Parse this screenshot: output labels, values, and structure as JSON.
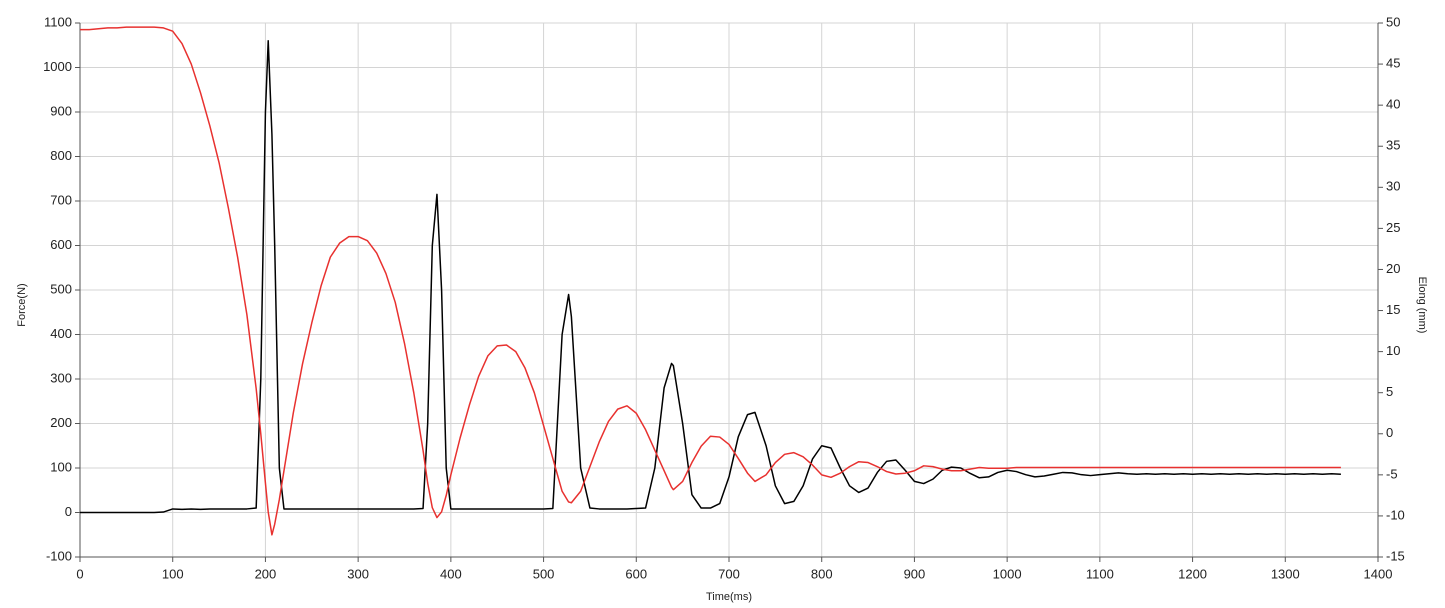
{
  "chart_data": {
    "type": "line",
    "x_label": "Time(ms)",
    "y_label": "Force(N)",
    "y2_label": "Elong (mm)",
    "x": [
      0,
      10,
      20,
      30,
      40,
      50,
      60,
      70,
      80,
      90,
      100,
      110,
      120,
      130,
      140,
      150,
      160,
      170,
      180,
      190,
      195,
      200,
      203,
      207,
      210,
      215,
      220,
      230,
      240,
      250,
      260,
      270,
      280,
      290,
      300,
      310,
      320,
      330,
      340,
      350,
      360,
      370,
      375,
      380,
      385,
      390,
      395,
      400,
      410,
      420,
      430,
      440,
      450,
      460,
      470,
      480,
      490,
      500,
      510,
      520,
      527,
      530,
      540,
      550,
      560,
      570,
      580,
      590,
      600,
      610,
      620,
      630,
      638,
      640,
      650,
      660,
      670,
      680,
      690,
      700,
      710,
      720,
      728,
      740,
      750,
      760,
      770,
      780,
      790,
      800,
      810,
      820,
      830,
      840,
      850,
      860,
      870,
      880,
      890,
      900,
      910,
      920,
      930,
      940,
      950,
      960,
      970,
      980,
      990,
      1000,
      1010,
      1020,
      1030,
      1040,
      1050,
      1060,
      1070,
      1080,
      1090,
      1100,
      1110,
      1120,
      1130,
      1140,
      1150,
      1160,
      1170,
      1180,
      1190,
      1200,
      1210,
      1220,
      1230,
      1240,
      1250,
      1260,
      1270,
      1280,
      1290,
      1300,
      1310,
      1320,
      1330,
      1340,
      1350,
      1360
    ],
    "series": [
      {
        "color": "#000000",
        "axis": "y",
        "values": [
          0,
          0,
          0,
          0,
          0,
          0,
          0,
          0,
          0,
          1,
          8,
          7,
          8,
          7,
          8,
          8,
          8,
          8,
          8,
          10,
          300,
          900,
          1060,
          850,
          600,
          100,
          8,
          8,
          8,
          8,
          8,
          8,
          8,
          8,
          8,
          8,
          8,
          8,
          8,
          8,
          8,
          9,
          200,
          600,
          715,
          500,
          100,
          8,
          8,
          8,
          8,
          8,
          8,
          8,
          8,
          8,
          8,
          8,
          9,
          400,
          490,
          440,
          100,
          10,
          8,
          8,
          8,
          8,
          9,
          10,
          100,
          280,
          335,
          330,
          200,
          40,
          10,
          10,
          20,
          80,
          170,
          220,
          225,
          150,
          60,
          20,
          25,
          60,
          120,
          150,
          145,
          100,
          60,
          45,
          55,
          90,
          115,
          118,
          95,
          70,
          65,
          75,
          95,
          102,
          100,
          88,
          78,
          80,
          90,
          95,
          92,
          85,
          80,
          82,
          86,
          90,
          89,
          85,
          83,
          85,
          87,
          89,
          87,
          86,
          87,
          86,
          87,
          86,
          87,
          86,
          87,
          86,
          87,
          86,
          87,
          86,
          87,
          86,
          87,
          86,
          87,
          86,
          87,
          86,
          87,
          86
        ]
      },
      {
        "color": "#e8312f",
        "axis": "y2",
        "values": [
          49.2,
          49.2,
          49.3,
          49.4,
          49.4,
          49.5,
          49.5,
          49.5,
          49.5,
          49.4,
          49,
          47.5,
          45,
          41.5,
          37.5,
          33,
          27.5,
          21.5,
          14.5,
          5.5,
          0,
          -6,
          -9.5,
          -12.3,
          -11,
          -8,
          -4.5,
          2.5,
          8.5,
          13.5,
          18,
          21.5,
          23.2,
          24,
          24,
          23.5,
          22,
          19.5,
          16,
          11,
          5,
          -2,
          -6,
          -9,
          -10.2,
          -9.5,
          -7.5,
          -5,
          -0.5,
          3.5,
          7,
          9.5,
          10.7,
          10.8,
          10,
          8,
          5,
          1,
          -3,
          -7,
          -8.3,
          -8.4,
          -7,
          -4,
          -1,
          1.5,
          3,
          3.4,
          2.5,
          0.5,
          -2,
          -4.5,
          -6.5,
          -6.8,
          -5.8,
          -3.5,
          -1.5,
          -0.3,
          -0.4,
          -1.3,
          -3,
          -4.8,
          -5.8,
          -5,
          -3.5,
          -2.5,
          -2.3,
          -2.8,
          -3.8,
          -5,
          -5.3,
          -4.8,
          -4,
          -3.4,
          -3.5,
          -4,
          -4.6,
          -4.9,
          -4.8,
          -4.5,
          -3.9,
          -4,
          -4.3,
          -4.5,
          -4.5,
          -4.3,
          -4.1,
          -4.2,
          -4.2,
          -4.2,
          -4.1,
          -4.1,
          -4.1,
          -4.1,
          -4.1,
          -4.1,
          -4.1,
          -4.1,
          -4.1,
          -4.1,
          -4.1,
          -4.1,
          -4.1,
          -4.1,
          -4.1,
          -4.1,
          -4.1,
          -4.1,
          -4.1,
          -4.1,
          -4.1,
          -4.1,
          -4.1,
          -4.1,
          -4.1,
          -4.1,
          -4.1,
          -4.1,
          -4.1,
          -4.1,
          -4.1,
          -4.1,
          -4.1,
          -4.1,
          -4.1,
          -4.1
        ]
      }
    ],
    "xlim": [
      0,
      1400
    ],
    "xticks": [
      0,
      100,
      200,
      300,
      400,
      500,
      600,
      700,
      800,
      900,
      1000,
      1100,
      1200,
      1300,
      1400
    ],
    "ylim": [
      -100,
      1100
    ],
    "yticks": [
      -100,
      0,
      100,
      200,
      300,
      400,
      500,
      600,
      700,
      800,
      900,
      1000,
      1100
    ],
    "y2lim": [
      -15,
      50
    ],
    "y2ticks": [
      -15,
      -10,
      -5,
      0,
      5,
      10,
      15,
      20,
      25,
      30,
      35,
      40,
      45,
      50
    ],
    "grid": true
  }
}
